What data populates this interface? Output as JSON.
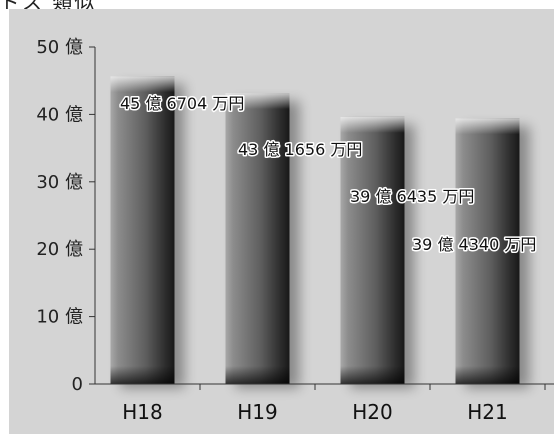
{
  "top_fragment": "ドス 類似",
  "chart_data": {
    "type": "bar",
    "categories": [
      "H18",
      "H19",
      "H20",
      "H21"
    ],
    "values": [
      45.6704,
      43.1656,
      39.6435,
      39.434
    ],
    "data_labels": [
      "45 億 6704 万円",
      "43 億 1656 万円",
      "39 億 6435 万円",
      "39 億 4340 万円"
    ],
    "y_ticks": [
      0,
      10,
      20,
      30,
      40,
      50
    ],
    "y_tick_labels": [
      "0",
      "10 億",
      "20 億",
      "30 億",
      "40 億",
      "50 億"
    ],
    "ylim": [
      0,
      50
    ],
    "title": "",
    "xlabel": "",
    "ylabel": "",
    "grid": false,
    "bar_color": "#6b6b6b",
    "background_color": "#d4d4d4"
  }
}
